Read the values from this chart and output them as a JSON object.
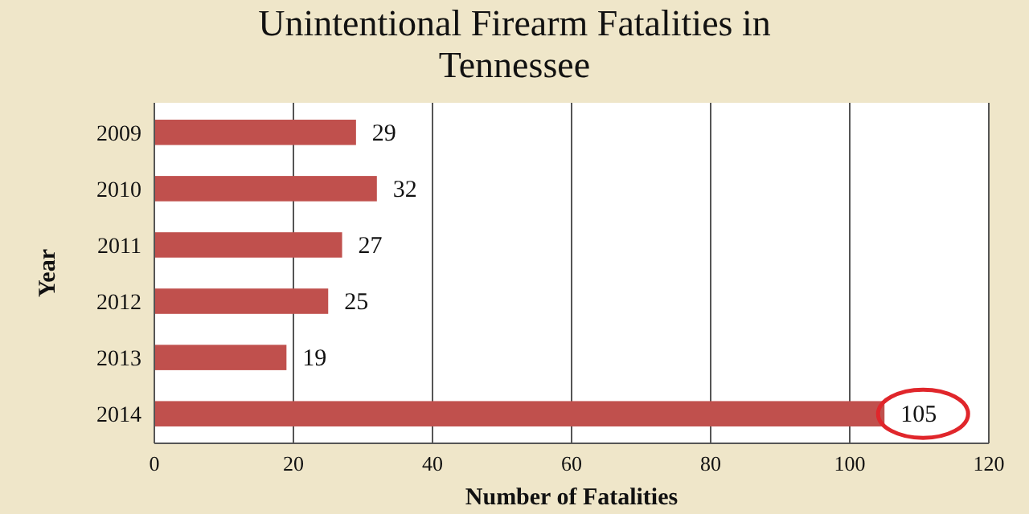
{
  "chart_data": {
    "type": "bar",
    "orientation": "horizontal",
    "title": "Unintentional Firearm Fatalities in Tennessee",
    "xlabel": "Number of Fatalities",
    "ylabel": "Year",
    "categories": [
      "2009",
      "2010",
      "2011",
      "2012",
      "2013",
      "2014"
    ],
    "values": [
      29,
      32,
      27,
      25,
      19,
      105
    ],
    "color": "#c0504d",
    "data_labels": true,
    "xlim": [
      0,
      120
    ],
    "xticks": [
      0,
      20,
      40,
      60,
      80,
      100,
      120
    ],
    "grid": "x"
  }
}
